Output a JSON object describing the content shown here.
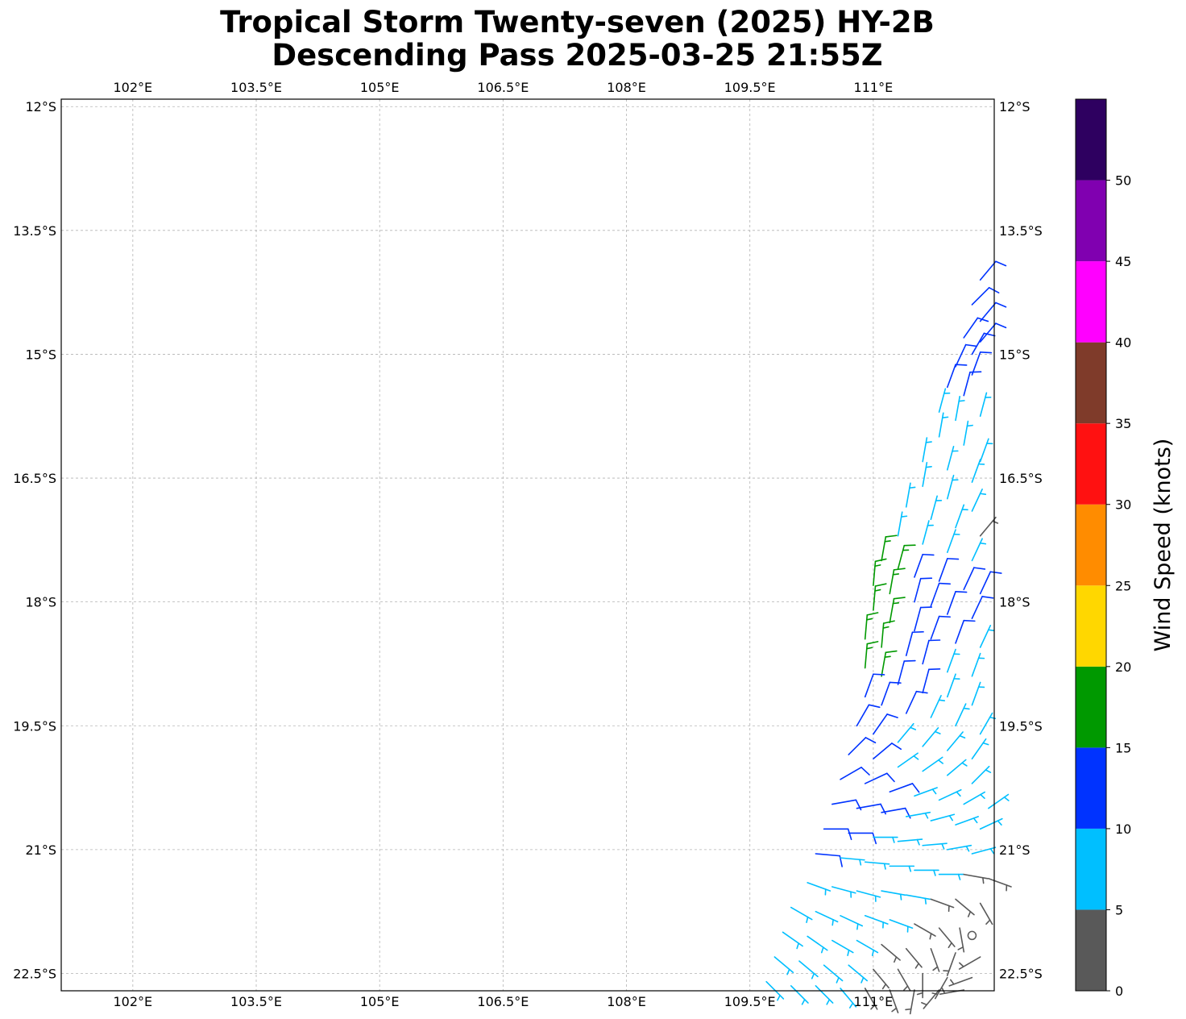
{
  "title_line1": "Tropical Storm Twenty-seven (2025) HY-2B",
  "title_line2": "Descending Pass 2025-03-25 21:55Z",
  "map": {
    "lon_range": [
      101.13,
      112.47
    ],
    "lat_range": [
      -22.71,
      -11.91
    ],
    "lon_ticks": [
      102,
      103.5,
      105,
      106.5,
      108,
      109.5,
      111
    ],
    "lon_tick_labels": [
      "102°E",
      "103.5°E",
      "105°E",
      "106.5°E",
      "108°E",
      "109.5°E",
      "111°E"
    ],
    "lat_ticks": [
      -12,
      -13.5,
      -15,
      -16.5,
      -18,
      -19.5,
      -21,
      -22.5
    ],
    "lat_tick_labels": [
      "12°S",
      "13.5°S",
      "15°S",
      "16.5°S",
      "18°S",
      "19.5°S",
      "21°S",
      "22.5°S"
    ],
    "gridlines": true
  },
  "colorbar": {
    "label": "Wind Speed (knots)",
    "range": [
      0,
      55
    ],
    "tick_values": [
      0,
      5,
      10,
      15,
      20,
      25,
      30,
      35,
      40,
      45,
      50
    ],
    "tick_labels": [
      "0",
      "5",
      "10",
      "15",
      "20",
      "25",
      "30",
      "35",
      "40",
      "45",
      "50"
    ],
    "bins": [
      {
        "from": 0,
        "to": 5,
        "color": "#595959"
      },
      {
        "from": 5,
        "to": 10,
        "color": "#00bfff"
      },
      {
        "from": 10,
        "to": 15,
        "color": "#0033ff"
      },
      {
        "from": 15,
        "to": 20,
        "color": "#009900"
      },
      {
        "from": 20,
        "to": 25,
        "color": "#ffd700"
      },
      {
        "from": 25,
        "to": 30,
        "color": "#ff8c00"
      },
      {
        "from": 30,
        "to": 35,
        "color": "#ff1111"
      },
      {
        "from": 35,
        "to": 40,
        "color": "#7f3b2a"
      },
      {
        "from": 40,
        "to": 45,
        "color": "#ff00ff"
      },
      {
        "from": 45,
        "to": 50,
        "color": "#8000b0"
      },
      {
        "from": 50,
        "to": 55,
        "color": "#2e0060"
      }
    ]
  },
  "chart_data": {
    "type": "wind-barbs",
    "x_unit": "degrees longitude (E)",
    "y_unit": "degrees latitude",
    "units": "knots",
    "center_circle": {
      "lon": 112.2,
      "lat": -22.04
    },
    "barbs": [
      {
        "lon": 112.3,
        "lat": -14.1,
        "speed": 12,
        "dir": 40
      },
      {
        "lon": 112.2,
        "lat": -14.4,
        "speed": 12,
        "dir": 45
      },
      {
        "lon": 112.3,
        "lat": -14.6,
        "speed": 12,
        "dir": 40
      },
      {
        "lon": 112.1,
        "lat": -14.8,
        "speed": 12,
        "dir": 35
      },
      {
        "lon": 112.3,
        "lat": -14.85,
        "speed": 12,
        "dir": 40
      },
      {
        "lon": 112.2,
        "lat": -15.0,
        "speed": 12,
        "dir": 30
      },
      {
        "lon": 112.0,
        "lat": -15.15,
        "speed": 12,
        "dir": 25
      },
      {
        "lon": 112.2,
        "lat": -15.25,
        "speed": 12,
        "dir": 20
      },
      {
        "lon": 111.9,
        "lat": -15.4,
        "speed": 12,
        "dir": 20
      },
      {
        "lon": 112.1,
        "lat": -15.5,
        "speed": 12,
        "dir": 15
      },
      {
        "lon": 111.8,
        "lat": -15.7,
        "speed": 7,
        "dir": 15
      },
      {
        "lon": 112.0,
        "lat": -15.8,
        "speed": 7,
        "dir": 10
      },
      {
        "lon": 112.3,
        "lat": -15.75,
        "speed": 7,
        "dir": 15
      },
      {
        "lon": 111.8,
        "lat": -16.0,
        "speed": 7,
        "dir": 10
      },
      {
        "lon": 112.1,
        "lat": -16.1,
        "speed": 7,
        "dir": 10
      },
      {
        "lon": 112.3,
        "lat": -16.3,
        "speed": 7,
        "dir": 20
      },
      {
        "lon": 111.6,
        "lat": -16.3,
        "speed": 7,
        "dir": 10
      },
      {
        "lon": 111.9,
        "lat": -16.4,
        "speed": 7,
        "dir": 15
      },
      {
        "lon": 112.2,
        "lat": -16.55,
        "speed": 7,
        "dir": 20
      },
      {
        "lon": 111.6,
        "lat": -16.6,
        "speed": 7,
        "dir": 10
      },
      {
        "lon": 111.9,
        "lat": -16.75,
        "speed": 7,
        "dir": 15
      },
      {
        "lon": 112.2,
        "lat": -16.9,
        "speed": 7,
        "dir": 25
      },
      {
        "lon": 111.4,
        "lat": -16.85,
        "speed": 7,
        "dir": 10
      },
      {
        "lon": 111.7,
        "lat": -17.0,
        "speed": 7,
        "dir": 15
      },
      {
        "lon": 112.0,
        "lat": -17.1,
        "speed": 7,
        "dir": 20
      },
      {
        "lon": 112.3,
        "lat": -17.2,
        "speed": 4,
        "dir": 40
      },
      {
        "lon": 111.3,
        "lat": -17.2,
        "speed": 7,
        "dir": 10
      },
      {
        "lon": 111.6,
        "lat": -17.3,
        "speed": 7,
        "dir": 15
      },
      {
        "lon": 111.9,
        "lat": -17.4,
        "speed": 7,
        "dir": 20
      },
      {
        "lon": 112.2,
        "lat": -17.5,
        "speed": 7,
        "dir": 25
      },
      {
        "lon": 111.1,
        "lat": -17.5,
        "speed": 17,
        "dir": 10
      },
      {
        "lon": 111.3,
        "lat": -17.6,
        "speed": 17,
        "dir": 15
      },
      {
        "lon": 111.5,
        "lat": -17.7,
        "speed": 12,
        "dir": 20
      },
      {
        "lon": 111.8,
        "lat": -17.75,
        "speed": 12,
        "dir": 20
      },
      {
        "lon": 112.1,
        "lat": -17.85,
        "speed": 12,
        "dir": 25
      },
      {
        "lon": 112.3,
        "lat": -17.9,
        "speed": 12,
        "dir": 25
      },
      {
        "lon": 111.0,
        "lat": -17.8,
        "speed": 17,
        "dir": 5
      },
      {
        "lon": 111.2,
        "lat": -17.9,
        "speed": 17,
        "dir": 10
      },
      {
        "lon": 111.5,
        "lat": -18.0,
        "speed": 12,
        "dir": 15
      },
      {
        "lon": 111.7,
        "lat": -18.05,
        "speed": 12,
        "dir": 20
      },
      {
        "lon": 111.9,
        "lat": -18.15,
        "speed": 12,
        "dir": 20
      },
      {
        "lon": 112.2,
        "lat": -18.2,
        "speed": 12,
        "dir": 25
      },
      {
        "lon": 111.0,
        "lat": -18.1,
        "speed": 17,
        "dir": 5
      },
      {
        "lon": 111.2,
        "lat": -18.25,
        "speed": 17,
        "dir": 10
      },
      {
        "lon": 111.5,
        "lat": -18.35,
        "speed": 12,
        "dir": 15
      },
      {
        "lon": 111.7,
        "lat": -18.45,
        "speed": 12,
        "dir": 20
      },
      {
        "lon": 112.0,
        "lat": -18.5,
        "speed": 12,
        "dir": 20
      },
      {
        "lon": 112.3,
        "lat": -18.55,
        "speed": 7,
        "dir": 25
      },
      {
        "lon": 110.9,
        "lat": -18.45,
        "speed": 17,
        "dir": 5
      },
      {
        "lon": 111.1,
        "lat": -18.55,
        "speed": 17,
        "dir": 5
      },
      {
        "lon": 111.4,
        "lat": -18.65,
        "speed": 12,
        "dir": 15
      },
      {
        "lon": 111.6,
        "lat": -18.75,
        "speed": 12,
        "dir": 15
      },
      {
        "lon": 111.9,
        "lat": -18.85,
        "speed": 7,
        "dir": 20
      },
      {
        "lon": 112.2,
        "lat": -18.9,
        "speed": 7,
        "dir": 20
      },
      {
        "lon": 110.9,
        "lat": -18.8,
        "speed": 17,
        "dir": 5
      },
      {
        "lon": 111.1,
        "lat": -18.9,
        "speed": 17,
        "dir": 10
      },
      {
        "lon": 111.3,
        "lat": -19.0,
        "speed": 12,
        "dir": 15
      },
      {
        "lon": 111.6,
        "lat": -19.1,
        "speed": 12,
        "dir": 15
      },
      {
        "lon": 111.9,
        "lat": -19.15,
        "speed": 7,
        "dir": 20
      },
      {
        "lon": 112.2,
        "lat": -19.25,
        "speed": 7,
        "dir": 20
      },
      {
        "lon": 110.9,
        "lat": -19.15,
        "speed": 12,
        "dir": 20
      },
      {
        "lon": 111.1,
        "lat": -19.25,
        "speed": 12,
        "dir": 20
      },
      {
        "lon": 111.4,
        "lat": -19.35,
        "speed": 12,
        "dir": 25
      },
      {
        "lon": 111.7,
        "lat": -19.4,
        "speed": 7,
        "dir": 25
      },
      {
        "lon": 112.0,
        "lat": -19.5,
        "speed": 7,
        "dir": 25
      },
      {
        "lon": 112.3,
        "lat": -19.6,
        "speed": 7,
        "dir": 30
      },
      {
        "lon": 110.8,
        "lat": -19.5,
        "speed": 12,
        "dir": 30
      },
      {
        "lon": 111.0,
        "lat": -19.6,
        "speed": 12,
        "dir": 35
      },
      {
        "lon": 111.3,
        "lat": -19.7,
        "speed": 7,
        "dir": 40
      },
      {
        "lon": 111.6,
        "lat": -19.75,
        "speed": 7,
        "dir": 40
      },
      {
        "lon": 111.9,
        "lat": -19.8,
        "speed": 7,
        "dir": 40
      },
      {
        "lon": 112.2,
        "lat": -19.9,
        "speed": 7,
        "dir": 35
      },
      {
        "lon": 110.7,
        "lat": -19.85,
        "speed": 12,
        "dir": 45
      },
      {
        "lon": 111.0,
        "lat": -19.9,
        "speed": 12,
        "dir": 50
      },
      {
        "lon": 111.3,
        "lat": -20.0,
        "speed": 7,
        "dir": 55
      },
      {
        "lon": 111.6,
        "lat": -20.05,
        "speed": 7,
        "dir": 55
      },
      {
        "lon": 111.9,
        "lat": -20.1,
        "speed": 7,
        "dir": 50
      },
      {
        "lon": 112.2,
        "lat": -20.2,
        "speed": 7,
        "dir": 45
      },
      {
        "lon": 110.6,
        "lat": -20.15,
        "speed": 12,
        "dir": 60
      },
      {
        "lon": 110.9,
        "lat": -20.2,
        "speed": 12,
        "dir": 65
      },
      {
        "lon": 111.2,
        "lat": -20.3,
        "speed": 12,
        "dir": 70
      },
      {
        "lon": 111.5,
        "lat": -20.35,
        "speed": 7,
        "dir": 70
      },
      {
        "lon": 111.8,
        "lat": -20.4,
        "speed": 7,
        "dir": 65
      },
      {
        "lon": 112.1,
        "lat": -20.45,
        "speed": 7,
        "dir": 60
      },
      {
        "lon": 112.4,
        "lat": -20.5,
        "speed": 7,
        "dir": 55
      },
      {
        "lon": 110.5,
        "lat": -20.45,
        "speed": 12,
        "dir": 80
      },
      {
        "lon": 110.8,
        "lat": -20.5,
        "speed": 12,
        "dir": 80
      },
      {
        "lon": 111.1,
        "lat": -20.55,
        "speed": 12,
        "dir": 80
      },
      {
        "lon": 111.4,
        "lat": -20.6,
        "speed": 7,
        "dir": 80
      },
      {
        "lon": 111.7,
        "lat": -20.65,
        "speed": 7,
        "dir": 75
      },
      {
        "lon": 112.0,
        "lat": -20.7,
        "speed": 7,
        "dir": 70
      },
      {
        "lon": 112.3,
        "lat": -20.75,
        "speed": 7,
        "dir": 65
      },
      {
        "lon": 110.4,
        "lat": -20.75,
        "speed": 12,
        "dir": 90
      },
      {
        "lon": 110.7,
        "lat": -20.8,
        "speed": 12,
        "dir": 90
      },
      {
        "lon": 111.0,
        "lat": -20.85,
        "speed": 7,
        "dir": 90
      },
      {
        "lon": 111.3,
        "lat": -20.9,
        "speed": 7,
        "dir": 85
      },
      {
        "lon": 111.6,
        "lat": -20.95,
        "speed": 7,
        "dir": 85
      },
      {
        "lon": 111.9,
        "lat": -21.0,
        "speed": 7,
        "dir": 80
      },
      {
        "lon": 112.2,
        "lat": -21.05,
        "speed": 7,
        "dir": 75
      },
      {
        "lon": 110.3,
        "lat": -21.05,
        "speed": 12,
        "dir": 95
      },
      {
        "lon": 110.6,
        "lat": -21.1,
        "speed": 7,
        "dir": 95
      },
      {
        "lon": 110.9,
        "lat": -21.15,
        "speed": 7,
        "dir": 95
      },
      {
        "lon": 111.2,
        "lat": -21.2,
        "speed": 7,
        "dir": 90
      },
      {
        "lon": 111.5,
        "lat": -21.25,
        "speed": 7,
        "dir": 90
      },
      {
        "lon": 111.8,
        "lat": -21.3,
        "speed": 7,
        "dir": 90
      },
      {
        "lon": 112.1,
        "lat": -21.3,
        "speed": 4,
        "dir": 100
      },
      {
        "lon": 112.4,
        "lat": -21.35,
        "speed": 4,
        "dir": 110
      },
      {
        "lon": 110.2,
        "lat": -21.4,
        "speed": 7,
        "dir": 110
      },
      {
        "lon": 110.5,
        "lat": -21.45,
        "speed": 7,
        "dir": 105
      },
      {
        "lon": 110.8,
        "lat": -21.5,
        "speed": 7,
        "dir": 105
      },
      {
        "lon": 111.1,
        "lat": -21.5,
        "speed": 7,
        "dir": 100
      },
      {
        "lon": 111.4,
        "lat": -21.55,
        "speed": 7,
        "dir": 100
      },
      {
        "lon": 111.7,
        "lat": -21.6,
        "speed": 4,
        "dir": 110
      },
      {
        "lon": 112.0,
        "lat": -21.6,
        "speed": 4,
        "dir": 130
      },
      {
        "lon": 112.3,
        "lat": -21.65,
        "speed": 4,
        "dir": 150
      },
      {
        "lon": 110.0,
        "lat": -21.7,
        "speed": 7,
        "dir": 120
      },
      {
        "lon": 110.3,
        "lat": -21.75,
        "speed": 7,
        "dir": 115
      },
      {
        "lon": 110.6,
        "lat": -21.8,
        "speed": 7,
        "dir": 115
      },
      {
        "lon": 110.9,
        "lat": -21.8,
        "speed": 7,
        "dir": 110
      },
      {
        "lon": 111.2,
        "lat": -21.85,
        "speed": 7,
        "dir": 110
      },
      {
        "lon": 111.5,
        "lat": -21.9,
        "speed": 4,
        "dir": 120
      },
      {
        "lon": 111.8,
        "lat": -21.95,
        "speed": 4,
        "dir": 140
      },
      {
        "lon": 112.05,
        "lat": -21.95,
        "speed": 4,
        "dir": 170
      },
      {
        "lon": 109.9,
        "lat": -22.0,
        "speed": 7,
        "dir": 125
      },
      {
        "lon": 110.2,
        "lat": -22.05,
        "speed": 7,
        "dir": 125
      },
      {
        "lon": 110.5,
        "lat": -22.1,
        "speed": 7,
        "dir": 120
      },
      {
        "lon": 110.8,
        "lat": -22.1,
        "speed": 7,
        "dir": 120
      },
      {
        "lon": 111.1,
        "lat": -22.15,
        "speed": 4,
        "dir": 130
      },
      {
        "lon": 111.4,
        "lat": -22.2,
        "speed": 4,
        "dir": 140
      },
      {
        "lon": 111.7,
        "lat": -22.2,
        "speed": 4,
        "dir": 160
      },
      {
        "lon": 112.0,
        "lat": -22.25,
        "speed": 4,
        "dir": 200
      },
      {
        "lon": 112.3,
        "lat": -22.3,
        "speed": 4,
        "dir": 240
      },
      {
        "lon": 109.8,
        "lat": -22.3,
        "speed": 7,
        "dir": 130
      },
      {
        "lon": 110.1,
        "lat": -22.35,
        "speed": 7,
        "dir": 130
      },
      {
        "lon": 110.4,
        "lat": -22.4,
        "speed": 7,
        "dir": 130
      },
      {
        "lon": 110.7,
        "lat": -22.4,
        "speed": 7,
        "dir": 130
      },
      {
        "lon": 111.0,
        "lat": -22.45,
        "speed": 4,
        "dir": 140
      },
      {
        "lon": 111.3,
        "lat": -22.45,
        "speed": 4,
        "dir": 150
      },
      {
        "lon": 111.6,
        "lat": -22.5,
        "speed": 4,
        "dir": 180
      },
      {
        "lon": 111.9,
        "lat": -22.55,
        "speed": 4,
        "dir": 210
      },
      {
        "lon": 112.2,
        "lat": -22.55,
        "speed": 4,
        "dir": 250
      },
      {
        "lon": 109.7,
        "lat": -22.6,
        "speed": 7,
        "dir": 135
      },
      {
        "lon": 110.0,
        "lat": -22.65,
        "speed": 7,
        "dir": 135
      },
      {
        "lon": 110.3,
        "lat": -22.65,
        "speed": 7,
        "dir": 135
      },
      {
        "lon": 110.6,
        "lat": -22.68,
        "speed": 7,
        "dir": 140
      },
      {
        "lon": 110.9,
        "lat": -22.68,
        "speed": 4,
        "dir": 150
      },
      {
        "lon": 111.2,
        "lat": -22.7,
        "speed": 4,
        "dir": 160
      },
      {
        "lon": 111.5,
        "lat": -22.7,
        "speed": 4,
        "dir": 190
      },
      {
        "lon": 111.8,
        "lat": -22.7,
        "speed": 4,
        "dir": 220
      },
      {
        "lon": 112.1,
        "lat": -22.7,
        "speed": 4,
        "dir": 260
      }
    ]
  }
}
